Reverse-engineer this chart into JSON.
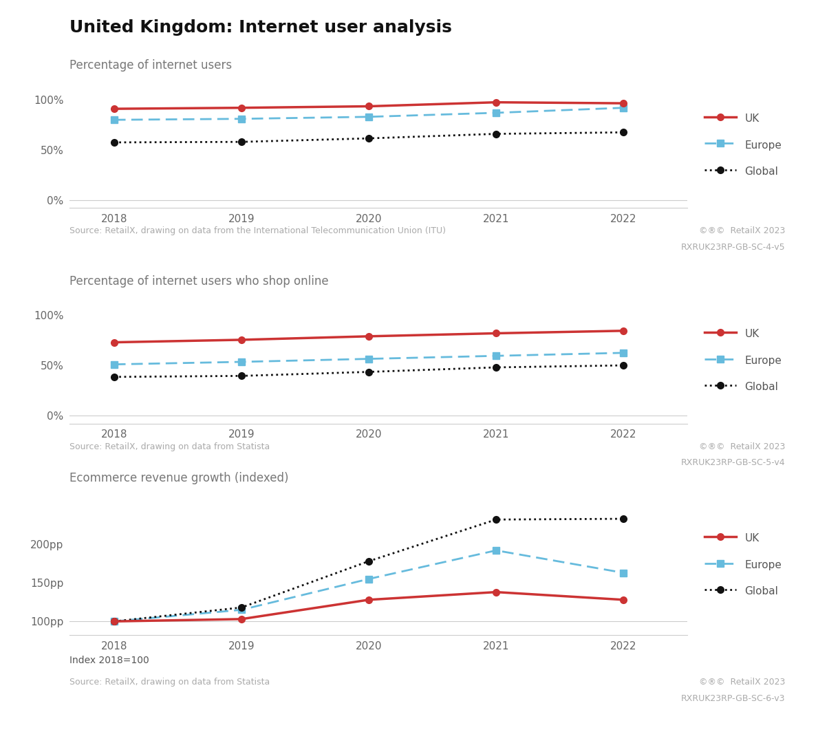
{
  "title": "United Kingdom: Internet user analysis",
  "background_color": "#ffffff",
  "years": [
    2018,
    2019,
    2020,
    2021,
    2022
  ],
  "chart1": {
    "subtitle": "Percentage of internet users",
    "uk": [
      0.91,
      0.92,
      0.935,
      0.975,
      0.965
    ],
    "europe": [
      0.8,
      0.81,
      0.83,
      0.87,
      0.92
    ],
    "global": [
      0.575,
      0.58,
      0.615,
      0.66,
      0.675
    ],
    "yticks": [
      0.0,
      0.5,
      1.0
    ],
    "ylim": [
      -0.08,
      1.18
    ],
    "yticklabels": [
      "0%",
      "50%",
      "100%"
    ],
    "source": "Source: RetailX, drawing on data from the International Telecommunication Union (ITU)",
    "code1": "©®©  RetailX 2023",
    "code2": "RXRUK23RP-GB-SC-4-v5"
  },
  "chart2": {
    "subtitle": "Percentage of internet users who shop online",
    "uk": [
      0.73,
      0.755,
      0.79,
      0.82,
      0.845
    ],
    "europe": [
      0.51,
      0.535,
      0.565,
      0.595,
      0.625
    ],
    "global": [
      0.385,
      0.395,
      0.435,
      0.48,
      0.5
    ],
    "yticks": [
      0.0,
      0.5,
      1.0
    ],
    "ylim": [
      -0.08,
      1.18
    ],
    "yticklabels": [
      "0%",
      "50%",
      "100%"
    ],
    "source": "Source: RetailX, drawing on data from Statista",
    "code1": "©®©  RetailX 2023",
    "code2": "RXRUK23RP-GB-SC-5-v4"
  },
  "chart3": {
    "subtitle": "Ecommerce revenue growth (indexed)",
    "uk": [
      100,
      103,
      128,
      138,
      128
    ],
    "europe": [
      100,
      115,
      155,
      192,
      163
    ],
    "global": [
      100,
      118,
      178,
      232,
      233
    ],
    "yticks": [
      100,
      150,
      200
    ],
    "ylim": [
      82,
      265
    ],
    "yticklabels": [
      "100pp",
      "150pp",
      "200pp"
    ],
    "source": "Source: RetailX, drawing on data from Statista",
    "code1": "©®©  RetailX 2023",
    "code2": "RXRUK23RP-GB-SC-6-v3",
    "footnote": "Index 2018=100"
  },
  "uk_color": "#cc3333",
  "europe_color": "#66bbdd",
  "global_color": "#111111",
  "source_color": "#aaaaaa",
  "subtitle_color": "#777777",
  "title_color": "#111111",
  "legend_labels": [
    "UK",
    "Europe",
    "Global"
  ]
}
